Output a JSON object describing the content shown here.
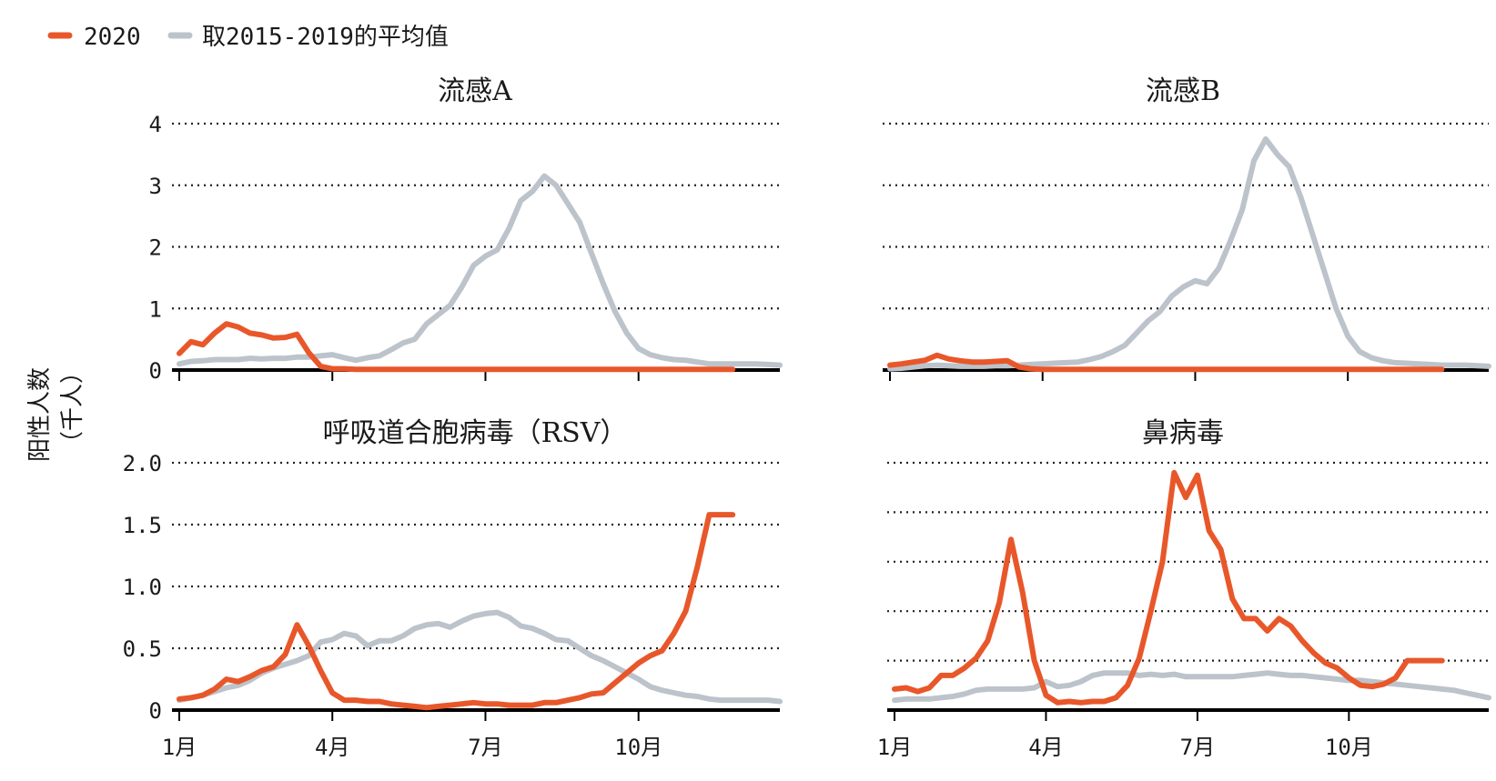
{
  "legend": {
    "items": [
      {
        "label": "2020",
        "color": "#e8572a"
      },
      {
        "label": "取2015-2019的平均值",
        "color": "#bcc3cb"
      }
    ]
  },
  "ylabel": {
    "line1": "阳性人数",
    "line2": "（千人）"
  },
  "chart_data": [
    {
      "type": "line",
      "title": "流感A",
      "ylim": [
        0,
        4
      ],
      "yticks": [
        "0",
        "1",
        "2",
        "3",
        "4"
      ],
      "show_ytick_labels": true,
      "xticks": [],
      "grid": "dotted horizontal",
      "series": [
        {
          "name": "2020",
          "color": "#e8572a",
          "x": [
            1,
            2,
            3,
            4,
            5,
            6,
            7,
            8,
            9,
            10,
            11,
            12,
            13,
            14,
            15,
            16,
            17,
            18,
            19,
            20,
            21,
            22,
            23,
            24,
            25,
            26,
            27,
            28,
            29,
            30,
            31,
            32,
            33,
            34,
            35,
            36,
            37,
            38,
            39,
            40,
            41,
            42,
            43,
            44,
            45,
            46,
            47,
            48
          ],
          "values": [
            0.27,
            0.46,
            0.41,
            0.6,
            0.75,
            0.7,
            0.6,
            0.57,
            0.52,
            0.53,
            0.58,
            0.28,
            0.06,
            0.02,
            0.02,
            0.01,
            0.01,
            0.01,
            0.01,
            0.01,
            0.01,
            0.01,
            0.01,
            0.01,
            0.01,
            0.01,
            0.01,
            0.01,
            0.01,
            0.01,
            0.01,
            0.01,
            0.01,
            0.01,
            0.01,
            0.01,
            0.01,
            0.01,
            0.01,
            0.01,
            0.01,
            0.01,
            0.01,
            0.01,
            0.01,
            0.01,
            0.01,
            0.01
          ]
        },
        {
          "name": "取2015-2019的平均值",
          "color": "#bcc3cb",
          "x": [
            1,
            2,
            3,
            4,
            5,
            6,
            7,
            8,
            9,
            10,
            11,
            12,
            13,
            14,
            15,
            16,
            17,
            18,
            19,
            20,
            21,
            22,
            23,
            24,
            25,
            26,
            27,
            28,
            29,
            30,
            31,
            32,
            33,
            34,
            35,
            36,
            37,
            38,
            39,
            40,
            41,
            42,
            43,
            44,
            45,
            46,
            47,
            48,
            49,
            50,
            51,
            52
          ],
          "values": [
            0.1,
            0.14,
            0.15,
            0.17,
            0.17,
            0.17,
            0.19,
            0.18,
            0.19,
            0.19,
            0.21,
            0.21,
            0.23,
            0.25,
            0.2,
            0.16,
            0.2,
            0.23,
            0.33,
            0.44,
            0.5,
            0.75,
            0.9,
            1.05,
            1.35,
            1.7,
            1.85,
            1.95,
            2.3,
            2.75,
            2.9,
            3.15,
            3.0,
            2.7,
            2.4,
            1.9,
            1.4,
            0.95,
            0.6,
            0.35,
            0.25,
            0.2,
            0.17,
            0.16,
            0.13,
            0.1,
            0.1,
            0.1,
            0.1,
            0.1,
            0.09,
            0.08
          ]
        }
      ]
    },
    {
      "type": "line",
      "title": "流感B",
      "ylim": [
        0,
        4
      ],
      "yticks": [
        "0",
        "1",
        "2",
        "3",
        "4"
      ],
      "show_ytick_labels": false,
      "xticks": [],
      "grid": "dotted horizontal",
      "series": [
        {
          "name": "2020",
          "color": "#e8572a",
          "x": [
            1,
            2,
            3,
            4,
            5,
            6,
            7,
            8,
            9,
            10,
            11,
            12,
            13,
            14,
            15,
            16,
            17,
            18,
            19,
            20,
            21,
            22,
            23,
            24,
            25,
            26,
            27,
            28,
            29,
            30,
            31,
            32,
            33,
            34,
            35,
            36,
            37,
            38,
            39,
            40,
            41,
            42,
            43,
            44,
            45,
            46,
            47,
            48
          ],
          "values": [
            0.08,
            0.1,
            0.13,
            0.16,
            0.24,
            0.18,
            0.15,
            0.13,
            0.13,
            0.14,
            0.15,
            0.05,
            0.02,
            0.01,
            0.01,
            0.01,
            0.01,
            0.01,
            0.01,
            0.01,
            0.01,
            0.01,
            0.01,
            0.01,
            0.01,
            0.01,
            0.01,
            0.01,
            0.01,
            0.01,
            0.01,
            0.01,
            0.01,
            0.01,
            0.01,
            0.01,
            0.01,
            0.01,
            0.01,
            0.01,
            0.01,
            0.01,
            0.01,
            0.01,
            0.01,
            0.01,
            0.01,
            0.01
          ]
        },
        {
          "name": "取2015-2019的平均值",
          "color": "#bcc3cb",
          "x": [
            1,
            2,
            3,
            4,
            5,
            6,
            7,
            8,
            9,
            10,
            11,
            12,
            13,
            14,
            15,
            16,
            17,
            18,
            19,
            20,
            21,
            22,
            23,
            24,
            25,
            26,
            27,
            28,
            29,
            30,
            31,
            32,
            33,
            34,
            35,
            36,
            37,
            38,
            39,
            40,
            41,
            42,
            43,
            44,
            45,
            46,
            47,
            48,
            49,
            50,
            51,
            52
          ],
          "values": [
            0.02,
            0.03,
            0.05,
            0.07,
            0.08,
            0.07,
            0.06,
            0.06,
            0.06,
            0.07,
            0.07,
            0.08,
            0.09,
            0.1,
            0.11,
            0.12,
            0.13,
            0.17,
            0.22,
            0.3,
            0.4,
            0.6,
            0.8,
            0.95,
            1.2,
            1.35,
            1.45,
            1.4,
            1.65,
            2.1,
            2.6,
            3.4,
            3.75,
            3.5,
            3.3,
            2.8,
            2.2,
            1.6,
            1.0,
            0.55,
            0.3,
            0.2,
            0.15,
            0.12,
            0.11,
            0.1,
            0.09,
            0.08,
            0.08,
            0.08,
            0.07,
            0.06
          ]
        }
      ]
    },
    {
      "type": "line",
      "title": "呼吸道合胞病毒（RSV）",
      "ylim": [
        0,
        2.0
      ],
      "yticks": [
        "0",
        "0.5",
        "1.0",
        "1.5",
        "2.0"
      ],
      "show_ytick_labels": true,
      "xticks": [
        "1月",
        "4月",
        "7月",
        "10月"
      ],
      "grid": "dotted horizontal",
      "series": [
        {
          "name": "2020",
          "color": "#e8572a",
          "x": [
            1,
            2,
            3,
            4,
            5,
            6,
            7,
            8,
            9,
            10,
            11,
            12,
            13,
            14,
            15,
            16,
            17,
            18,
            19,
            20,
            21,
            22,
            23,
            24,
            25,
            26,
            27,
            28,
            29,
            30,
            31,
            32,
            33,
            34,
            35,
            36,
            37,
            38,
            39,
            40,
            41,
            42,
            43,
            44,
            45,
            46,
            47,
            48
          ],
          "values": [
            0.09,
            0.1,
            0.12,
            0.17,
            0.25,
            0.23,
            0.27,
            0.32,
            0.35,
            0.45,
            0.69,
            0.52,
            0.32,
            0.14,
            0.08,
            0.08,
            0.07,
            0.07,
            0.05,
            0.04,
            0.03,
            0.02,
            0.03,
            0.04,
            0.05,
            0.06,
            0.05,
            0.05,
            0.04,
            0.04,
            0.04,
            0.06,
            0.06,
            0.08,
            0.1,
            0.13,
            0.14,
            0.22,
            0.3,
            0.38,
            0.44,
            0.48,
            0.62,
            0.8,
            1.16,
            1.58,
            1.58,
            1.58
          ]
        },
        {
          "name": "取2015-2019的平均值",
          "color": "#bcc3cb",
          "x": [
            1,
            2,
            3,
            4,
            5,
            6,
            7,
            8,
            9,
            10,
            11,
            12,
            13,
            14,
            15,
            16,
            17,
            18,
            19,
            20,
            21,
            22,
            23,
            24,
            25,
            26,
            27,
            28,
            29,
            30,
            31,
            32,
            33,
            34,
            35,
            36,
            37,
            38,
            39,
            40,
            41,
            42,
            43,
            44,
            45,
            46,
            47,
            48,
            49,
            50,
            51,
            52
          ],
          "values": [
            0.08,
            0.1,
            0.12,
            0.15,
            0.18,
            0.2,
            0.24,
            0.3,
            0.34,
            0.37,
            0.4,
            0.44,
            0.55,
            0.57,
            0.62,
            0.6,
            0.52,
            0.56,
            0.56,
            0.6,
            0.66,
            0.69,
            0.7,
            0.67,
            0.72,
            0.76,
            0.78,
            0.79,
            0.75,
            0.68,
            0.66,
            0.62,
            0.57,
            0.56,
            0.5,
            0.44,
            0.4,
            0.35,
            0.3,
            0.25,
            0.19,
            0.16,
            0.14,
            0.12,
            0.11,
            0.09,
            0.08,
            0.08,
            0.08,
            0.08,
            0.08,
            0.07
          ]
        }
      ]
    },
    {
      "type": "line",
      "title": "鼻病毒",
      "ylim": [
        0,
        2.0
      ],
      "yticks": [
        "0",
        "0.4",
        "0.8",
        "1.2",
        "1.6",
        "2.0"
      ],
      "show_ytick_labels": false,
      "xticks": [
        "1月",
        "4月",
        "7月",
        "10月"
      ],
      "grid": "dotted horizontal",
      "series": [
        {
          "name": "2020",
          "color": "#e8572a",
          "x": [
            1,
            2,
            3,
            4,
            5,
            6,
            7,
            8,
            9,
            10,
            11,
            12,
            13,
            14,
            15,
            16,
            17,
            18,
            19,
            20,
            21,
            22,
            23,
            24,
            25,
            26,
            27,
            28,
            29,
            30,
            31,
            32,
            33,
            34,
            35,
            36,
            37,
            38,
            39,
            40,
            41,
            42,
            43,
            44,
            45,
            46,
            47,
            48
          ],
          "values": [
            0.17,
            0.18,
            0.15,
            0.18,
            0.28,
            0.28,
            0.34,
            0.42,
            0.56,
            0.87,
            1.38,
            0.95,
            0.4,
            0.12,
            0.06,
            0.07,
            0.06,
            0.07,
            0.07,
            0.1,
            0.2,
            0.42,
            0.8,
            1.2,
            1.92,
            1.72,
            1.9,
            1.45,
            1.3,
            0.9,
            0.74,
            0.74,
            0.64,
            0.74,
            0.68,
            0.56,
            0.46,
            0.38,
            0.34,
            0.26,
            0.2,
            0.19,
            0.21,
            0.26,
            0.4,
            0.4,
            0.4,
            0.4
          ]
        },
        {
          "name": "取2015-2019的平均值",
          "color": "#bcc3cb",
          "x": [
            1,
            2,
            3,
            4,
            5,
            6,
            7,
            8,
            9,
            10,
            11,
            12,
            13,
            14,
            15,
            16,
            17,
            18,
            19,
            20,
            21,
            22,
            23,
            24,
            25,
            26,
            27,
            28,
            29,
            30,
            31,
            32,
            33,
            34,
            35,
            36,
            37,
            38,
            39,
            40,
            41,
            42,
            43,
            44,
            45,
            46,
            47,
            48,
            49,
            50,
            51,
            52
          ],
          "values": [
            0.08,
            0.09,
            0.09,
            0.09,
            0.1,
            0.11,
            0.13,
            0.16,
            0.17,
            0.17,
            0.17,
            0.17,
            0.18,
            0.23,
            0.19,
            0.2,
            0.23,
            0.28,
            0.3,
            0.3,
            0.3,
            0.28,
            0.29,
            0.28,
            0.29,
            0.27,
            0.27,
            0.27,
            0.27,
            0.27,
            0.28,
            0.29,
            0.3,
            0.29,
            0.28,
            0.28,
            0.27,
            0.26,
            0.25,
            0.24,
            0.24,
            0.23,
            0.22,
            0.21,
            0.2,
            0.19,
            0.18,
            0.17,
            0.16,
            0.14,
            0.12,
            0.1
          ]
        }
      ]
    }
  ]
}
